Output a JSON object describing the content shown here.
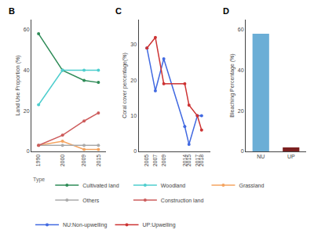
{
  "chart_data": [
    {
      "type": "line",
      "title": "B",
      "x": [
        1990,
        2000,
        2009,
        2015
      ],
      "series": [
        {
          "name": "Cultivated land",
          "color": "#2e8b57",
          "values": [
            58,
            40,
            35,
            34
          ]
        },
        {
          "name": "Woodland",
          "color": "#4ecece",
          "values": [
            23,
            40,
            40,
            40
          ]
        },
        {
          "name": "Grassland",
          "color": "#f4a460",
          "values": [
            3,
            5,
            1,
            1
          ]
        },
        {
          "name": "Others",
          "color": "#aaaaaa",
          "values": [
            3,
            3,
            3,
            3
          ]
        },
        {
          "name": "Construction land",
          "color": "#cd5c5c",
          "values": [
            3,
            8,
            15,
            19
          ]
        }
      ],
      "legend_title": "Type",
      "ylabel": "Land Use Proportion (%)",
      "xlim": [
        1987,
        2018
      ],
      "xticks": [
        1990,
        2000,
        2009,
        2015
      ],
      "ylim": [
        0,
        65
      ],
      "yticks": [
        0,
        20,
        40,
        60
      ],
      "marker": "circle",
      "grid": false
    },
    {
      "type": "line",
      "title": "C",
      "x": [
        2005,
        2007,
        2009,
        2014,
        2015,
        2017,
        2018
      ],
      "series": [
        {
          "name": "NU:Non-upwelling",
          "color": "#4169e1",
          "values": [
            29,
            17,
            26,
            7,
            2,
            10,
            10
          ]
        },
        {
          "name": "UP:Upwelling",
          "color": "#cd3333",
          "values": [
            29,
            32,
            19,
            19,
            13,
            10,
            6
          ]
        }
      ],
      "ylabel": "Coral cover percentage(%)",
      "xlim": [
        2003,
        2020
      ],
      "xticks": [
        2005,
        2007,
        2009,
        2014,
        2015,
        2017,
        2018
      ],
      "ylim": [
        0,
        37
      ],
      "yticks": [
        0,
        10,
        20,
        30
      ],
      "marker": "circle",
      "grid": false
    },
    {
      "type": "bar",
      "title": "D",
      "categories": [
        "NU",
        "UP"
      ],
      "values": [
        58,
        2
      ],
      "colors": [
        "#6baed6",
        "#7b2020"
      ],
      "ylabel": "Bleaching Percentage (%)",
      "ylim": [
        0,
        65
      ],
      "yticks": [
        0,
        20,
        40,
        60
      ],
      "grid": false
    }
  ]
}
